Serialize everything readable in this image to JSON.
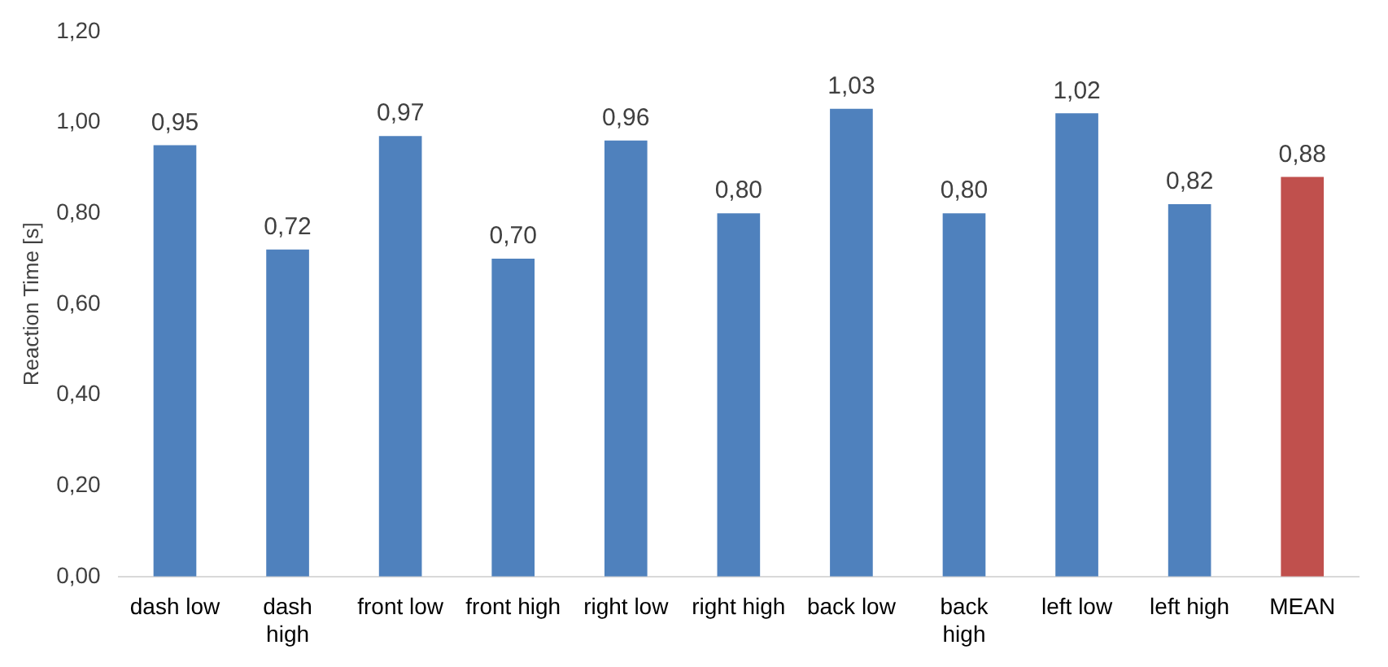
{
  "chart_data": {
    "type": "bar",
    "ylabel": "Reaction Time [s]",
    "categories": [
      "dash low",
      "dash high",
      "front low",
      "front high",
      "right low",
      "right high",
      "back low",
      "back high",
      "left low",
      "left high",
      "MEAN"
    ],
    "values": [
      0.95,
      0.72,
      0.97,
      0.7,
      0.96,
      0.8,
      1.03,
      0.8,
      1.02,
      0.82,
      0.88
    ],
    "value_labels": [
      "0,95",
      "0,72",
      "0,97",
      "0,70",
      "0,96",
      "0,80",
      "1,03",
      "0,80",
      "1,02",
      "0,82",
      "0,88"
    ],
    "colors": [
      "#4f81bd",
      "#4f81bd",
      "#4f81bd",
      "#4f81bd",
      "#4f81bd",
      "#4f81bd",
      "#4f81bd",
      "#4f81bd",
      "#4f81bd",
      "#4f81bd",
      "#c0504d"
    ],
    "ylim": [
      0,
      1.2
    ],
    "yticks": [
      {
        "value": 0,
        "label": "0,00"
      },
      {
        "value": 0.2,
        "label": "0,20"
      },
      {
        "value": 0.4,
        "label": "0,40"
      },
      {
        "value": 0.6,
        "label": "0,60"
      },
      {
        "value": 0.8,
        "label": "0,80"
      },
      {
        "value": 1.0,
        "label": "1,00"
      },
      {
        "value": 1.2,
        "label": "1,20"
      }
    ],
    "grid": false,
    "legend": false
  }
}
